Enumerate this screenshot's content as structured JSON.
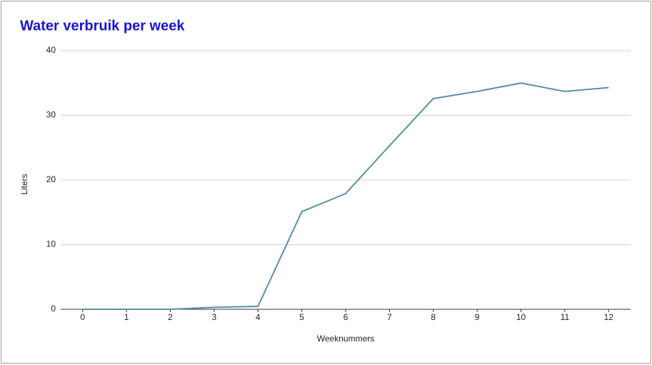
{
  "chart_data": {
    "type": "line",
    "title": "Water verbruik per week",
    "x_label": "Weeknummers",
    "y_label": "Liters",
    "x": [
      0,
      1,
      2,
      3,
      4,
      5,
      6,
      7,
      8,
      9,
      10,
      11,
      12
    ],
    "series": [
      {
        "name": "Liters",
        "color": "#5b8fa8",
        "values": [
          0,
          0,
          0,
          0.3,
          0.45,
          15.1,
          17.9,
          25.3,
          32.6,
          33.7,
          35.0,
          33.7,
          34.3
        ]
      }
    ],
    "xlim": [
      -0.5,
      12.5
    ],
    "xticks": [
      0,
      1,
      2,
      3,
      4,
      5,
      6,
      7,
      8,
      9,
      10,
      11,
      12
    ],
    "ylim": [
      0,
      40
    ],
    "yticks": [
      0,
      10,
      20,
      30,
      40
    ],
    "grid": true
  }
}
